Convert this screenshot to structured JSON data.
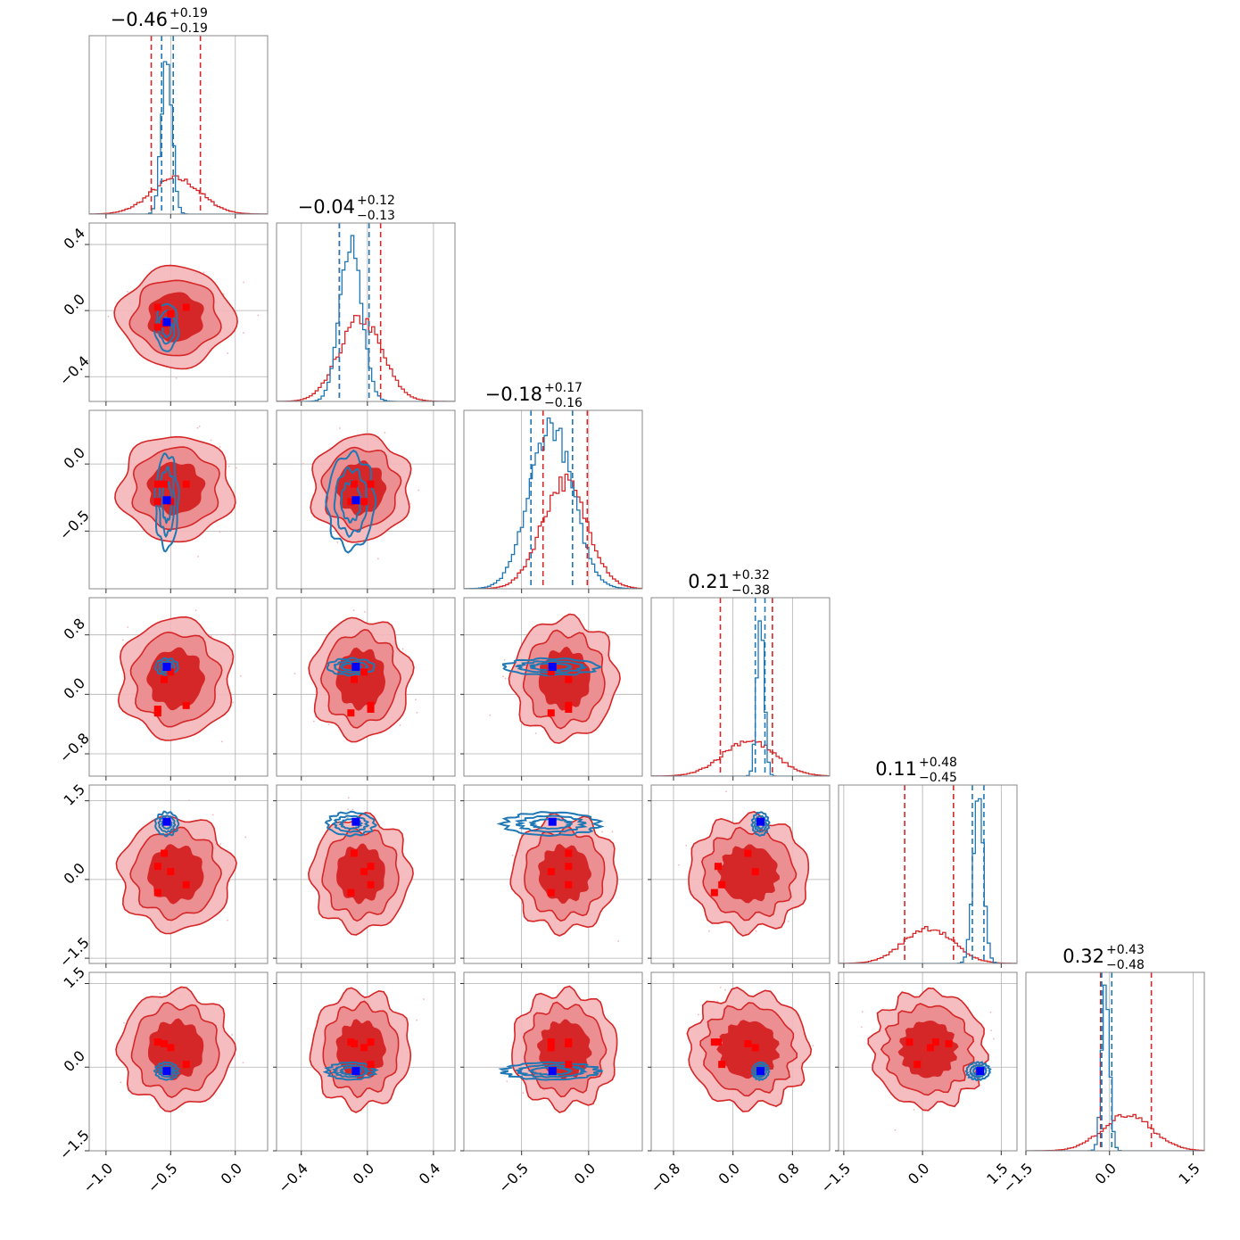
{
  "chart_data": {
    "type": "corner",
    "n_params": 6,
    "grid": true,
    "colors": {
      "red": "#d62728",
      "red_light": "#f4b6b8",
      "red_mid": "#ec8f92",
      "blue": "#1f77b4",
      "truth_red": "#ff0000",
      "truth_blue": "#0000ff"
    },
    "parameters": [
      {
        "title": "−0.46",
        "plus": "+0.19",
        "minus": "−0.19",
        "range": [
          -1.13,
          0.25
        ],
        "ticks": [
          -1.0,
          -0.5,
          0.0
        ],
        "tick_labels": [
          "−1.0",
          "−0.5",
          "0.0"
        ]
      },
      {
        "title": "−0.04",
        "plus": "+0.12",
        "minus": "−0.13",
        "range": [
          -0.55,
          0.53
        ],
        "ticks": [
          -0.4,
          0.0,
          0.4
        ],
        "tick_labels": [
          "−0.4",
          "0.0",
          "0.4"
        ]
      },
      {
        "title": "−0.18",
        "plus": "+0.17",
        "minus": "−0.16",
        "range": [
          -0.93,
          0.4
        ],
        "ticks": [
          -0.5,
          0.0
        ],
        "tick_labels": [
          "−0.5",
          "0.0"
        ]
      },
      {
        "title": "0.21",
        "plus": "+0.32",
        "minus": "−0.38",
        "range": [
          -1.1,
          1.3
        ],
        "ticks": [
          -0.8,
          0.0,
          0.8
        ],
        "tick_labels": [
          "−0.8",
          "0.0",
          "0.8"
        ]
      },
      {
        "title": "0.11",
        "plus": "+0.48",
        "minus": "−0.45",
        "range": [
          -1.6,
          1.8
        ],
        "ticks": [
          -1.5,
          0.0,
          1.5
        ],
        "tick_labels": [
          "−1.5",
          "0.0",
          "1.5"
        ]
      },
      {
        "title": "0.32",
        "plus": "+0.43",
        "minus": "−0.48",
        "range": [
          -1.5,
          1.7
        ],
        "ticks": [
          -1.5,
          0.0,
          1.5
        ],
        "tick_labels": [
          "−1.5",
          "0.0",
          "1.5"
        ]
      }
    ],
    "red_posterior": {
      "centers": [
        -0.46,
        -0.04,
        -0.18,
        0.21,
        0.11,
        0.32
      ],
      "sigmas": [
        0.19,
        0.13,
        0.17,
        0.35,
        0.47,
        0.45
      ],
      "quantile_lines": [
        [
          -0.65,
          -0.27
        ],
        [
          -0.17,
          0.08
        ],
        [
          -0.34,
          -0.01
        ],
        [
          -0.17,
          0.53
        ],
        [
          -0.34,
          0.59
        ],
        [
          -0.16,
          0.75
        ]
      ]
    },
    "blue_posterior": {
      "centers": [
        -0.53,
        -0.1,
        -0.28,
        0.37,
        1.06,
        -0.07
      ],
      "sigmas": [
        0.04,
        0.065,
        0.16,
        0.05,
        0.1,
        0.07
      ],
      "quantile_lines": [
        [
          -0.57,
          -0.48
        ],
        [
          -0.17,
          0.01
        ],
        [
          -0.43,
          -0.12
        ],
        [
          0.3,
          0.43
        ],
        [
          0.95,
          1.17
        ],
        [
          -0.14,
          0.04
        ]
      ]
    },
    "truth_blue": [
      -0.53,
      -0.07,
      -0.27,
      0.37,
      1.1,
      -0.07
    ],
    "truth_red_points": [
      [
        -0.6,
        0.02,
        -0.15,
        -0.2,
        0.25,
        0.45
      ],
      [
        -0.55,
        -0.08,
        -0.15,
        0.2,
        0.5,
        0.42
      ],
      [
        -0.5,
        -0.02,
        -0.28,
        0.3,
        0.15,
        0.35
      ],
      [
        -0.38,
        0.02,
        -0.15,
        -0.15,
        -0.1,
        0.05
      ],
      [
        -0.6,
        -0.1,
        -0.28,
        -0.25,
        -0.25,
        0.45
      ]
    ]
  }
}
